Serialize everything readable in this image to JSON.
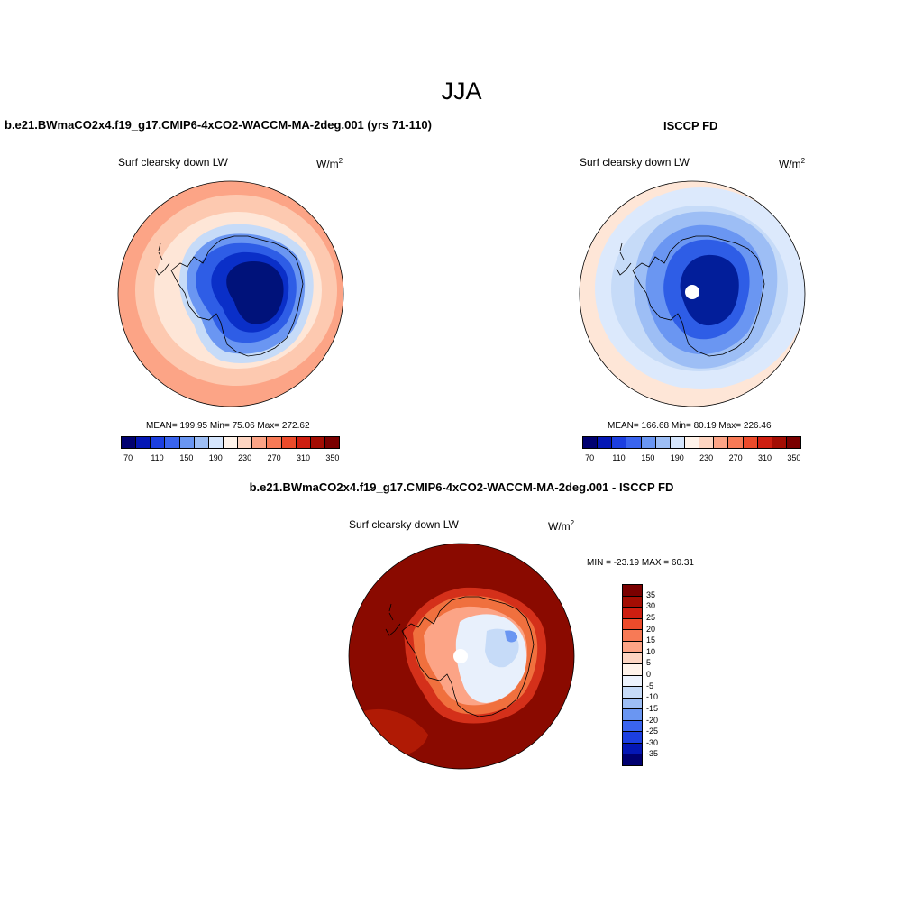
{
  "figure": {
    "title": "JJA"
  },
  "panels": {
    "model": {
      "title": "b.e21.BWmaCO2x4.f19_g17.CMIP6-4xCO2-WACCM-MA-2deg.001 (yrs 71-110)",
      "variable": "Surf clearsky down LW",
      "units_base": "W/m",
      "units_exp": "2",
      "stats": "MEAN= 199.95  Min=  75.06  Max= 272.62",
      "colors": {
        "ocean_far": "#FCA486",
        "ocean_mid": "#FDC9B0",
        "ocean_near": "#FEE6D7",
        "coast": "#C6DBF8",
        "ice1": "#9DBEF5",
        "ice2": "#6A96F2",
        "ice3": "#2E5DE6",
        "ice4": "#0A2FC8",
        "ice5": "#021E9A",
        "ice6": "#00127A"
      }
    },
    "obs": {
      "title": "ISCCP FD",
      "variable": "Surf clearsky down LW",
      "units_base": "W/m",
      "units_exp": "2",
      "stats": "MEAN= 166.68  Min=  80.19  Max= 226.46",
      "colors": {
        "ocean_far": "#FEE6D7",
        "ocean_mid": "#DCE9FC",
        "ocean_near": "#C6DBF8",
        "coast": "#9DBEF5",
        "ice1": "#6A96F2",
        "ice2": "#2E5DE6",
        "ice3": "#0A2FC8",
        "ice4": "#021E9A",
        "hole": "#FFFFFF"
      }
    },
    "diff": {
      "title": "b.e21.BWmaCO2x4.f19_g17.CMIP6-4xCO2-WACCM-MA-2deg.001 - ISCCP FD",
      "variable": "Surf clearsky down LW",
      "units_base": "W/m",
      "units_exp": "2",
      "stats": "MIN = -23.19 MAX =  60.31",
      "colors": {
        "ocean": "#8A0A00",
        "ocean_patch": "#B01A05",
        "coast1": "#D4301A",
        "coast2": "#F0703E",
        "coast3": "#FCA486",
        "interior": "#E8F0FC",
        "interior2": "#C6DBF8",
        "interior3": "#6A96F2",
        "hole": "#FFFFFF"
      }
    }
  },
  "colorbar_abs": {
    "colors": [
      "#000070",
      "#0417B5",
      "#1C3FE0",
      "#3A64EE",
      "#6A96F2",
      "#9DBEF5",
      "#D5E5FC",
      "#FFF3EA",
      "#FDD5C2",
      "#FCA486",
      "#F77A56",
      "#EC4B2B",
      "#CE1E10",
      "#A30D03",
      "#7A0000"
    ],
    "tick_labels": [
      "70",
      "110",
      "150",
      "190",
      "230",
      "270",
      "310",
      "350"
    ]
  },
  "colorbar_diff": {
    "colors": [
      "#7A0000",
      "#A30D03",
      "#CE1E10",
      "#EC4B2B",
      "#F77A56",
      "#FCA486",
      "#FDD5C2",
      "#FFF3EA",
      "#EDF3FD",
      "#C6DBF8",
      "#9DBEF5",
      "#6A96F2",
      "#3A64EE",
      "#1C3FE0",
      "#0417B5",
      "#000070"
    ],
    "tick_labels": [
      "35",
      "30",
      "25",
      "20",
      "15",
      "10",
      "5",
      "0",
      "-5",
      "-10",
      "-15",
      "-20",
      "-25",
      "-30",
      "-35"
    ]
  }
}
